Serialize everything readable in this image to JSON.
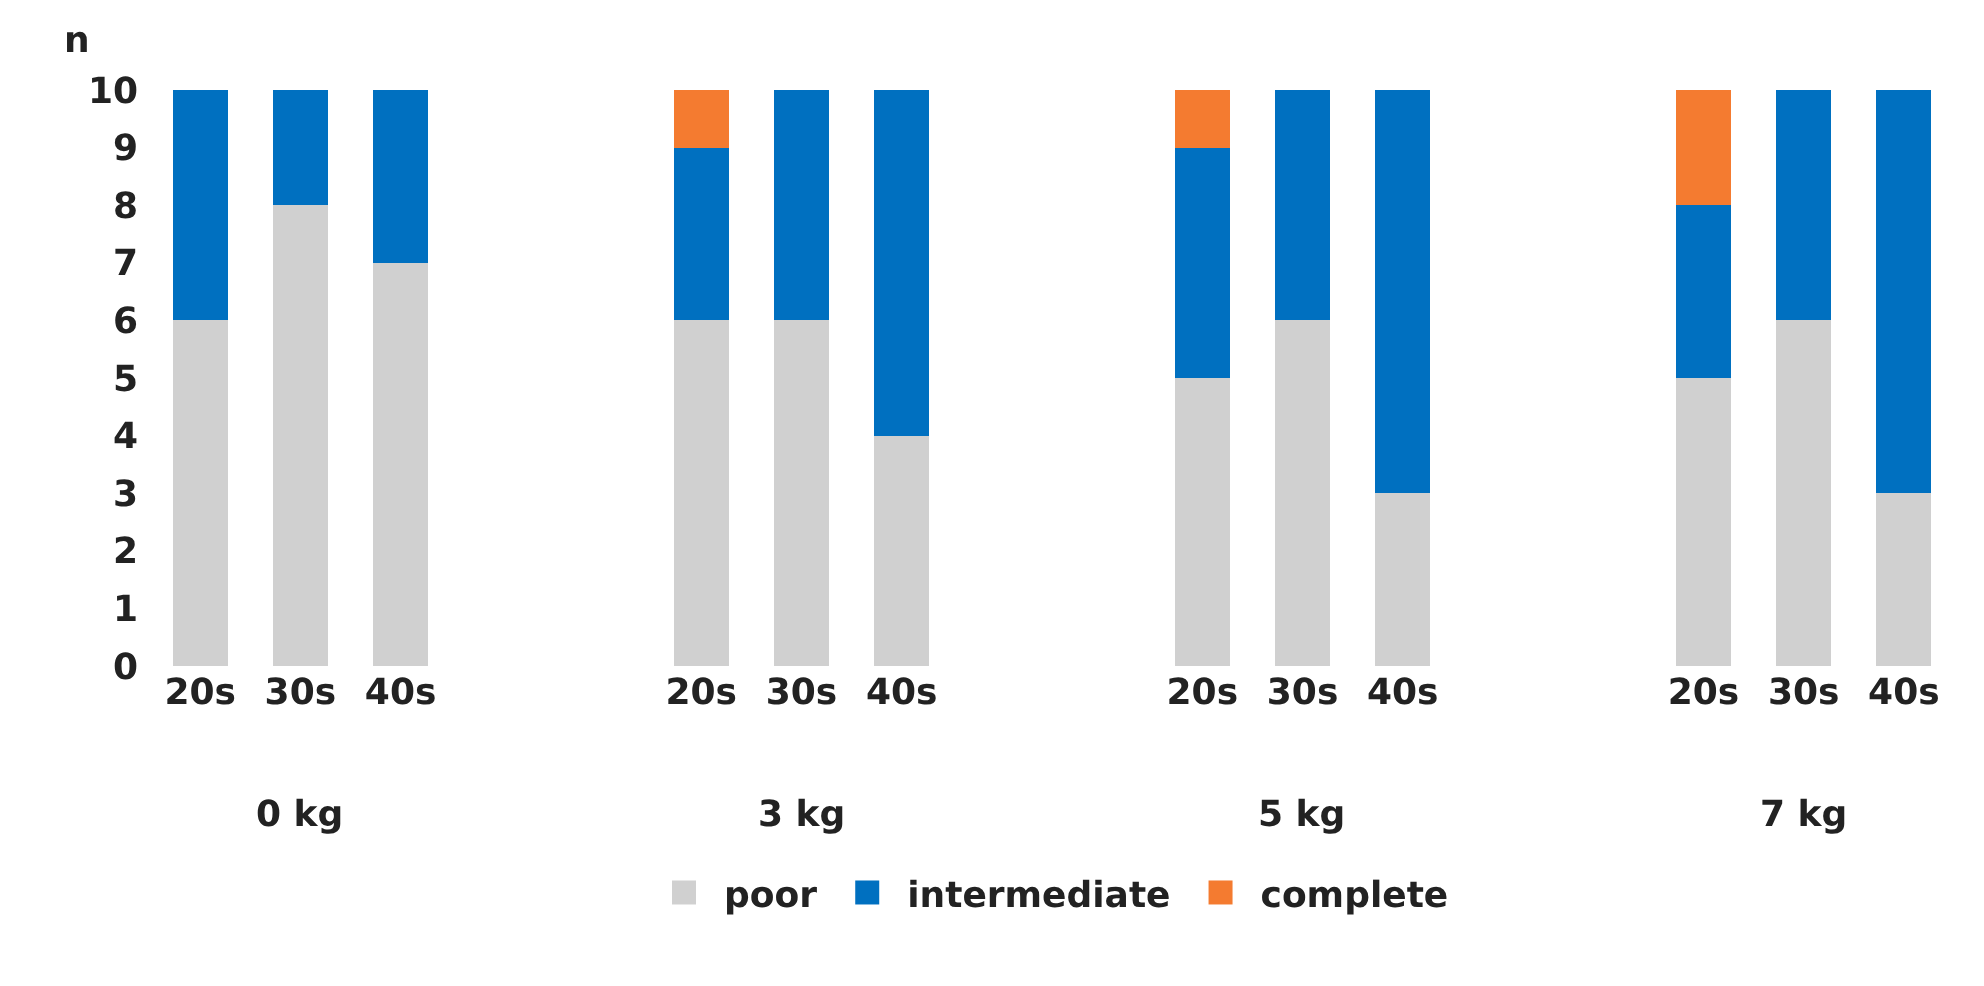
{
  "chart_data": {
    "type": "bar",
    "stacked": true,
    "ylabel": "n",
    "categories": [
      "20s",
      "30s",
      "40s",
      null,
      null,
      "20s",
      "30s",
      "40s",
      null,
      null,
      "20s",
      "30s",
      "40s",
      null,
      null,
      "20s",
      "30s",
      "40s"
    ],
    "series": [
      {
        "name": "poor",
        "color": "#d0d0d0",
        "values": [
          6,
          8,
          7,
          null,
          null,
          6,
          6,
          4,
          null,
          null,
          5,
          6,
          3,
          null,
          null,
          5,
          6,
          3
        ]
      },
      {
        "name": "intermediate",
        "color": "#0070c0",
        "values": [
          4,
          2,
          3,
          null,
          null,
          3,
          4,
          6,
          null,
          null,
          4,
          4,
          7,
          null,
          null,
          3,
          4,
          7
        ]
      },
      {
        "name": "complete",
        "color": "#f47b30",
        "values": [
          null,
          null,
          null,
          null,
          null,
          1,
          null,
          null,
          null,
          null,
          1,
          null,
          null,
          null,
          null,
          2,
          null,
          null
        ]
      }
    ],
    "annotations": [
      "0 kg",
      "3 kg",
      "5 kg",
      "7 kg"
    ],
    "ylim": [
      0,
      10
    ],
    "yticks": [
      0,
      1,
      2,
      3,
      4,
      5,
      6,
      7,
      8,
      9,
      10
    ],
    "grid": false,
    "legend": "bottom"
  }
}
